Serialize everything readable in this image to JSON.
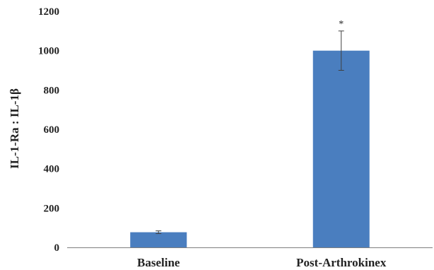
{
  "chart_data": {
    "type": "bar",
    "categories": [
      "Baseline",
      "Post-Arthrokinex"
    ],
    "values": [
      77,
      1000
    ],
    "error": [
      7,
      100
    ],
    "annotations": [
      "",
      "*"
    ],
    "ylabel": "IL-1-Ra : IL-1β",
    "xlabel": "",
    "ylim": [
      0,
      1200
    ],
    "yticks": [
      "0",
      "200",
      "400",
      "600",
      "800",
      "1000",
      "1200"
    ],
    "grid": false,
    "bar_color": "#4a7ebf",
    "axis_color": "#7f7f7f",
    "error_bar_color": "#404040"
  }
}
